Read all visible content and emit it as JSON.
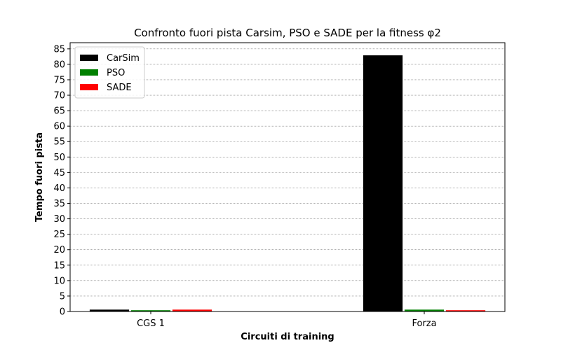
{
  "chart_data": {
    "type": "bar",
    "title": "Confronto fuori pista Carsim, PSO e SADE per la fitness φ2",
    "xlabel": "Circuiti di training",
    "ylabel": "Tempo fuori pista",
    "categories": [
      "CGS 1",
      "Forza"
    ],
    "series": [
      {
        "name": "CarSim",
        "color": "#000000",
        "values": [
          0.7,
          83
        ]
      },
      {
        "name": "PSO",
        "color": "#008000",
        "values": [
          0.5,
          0.7
        ]
      },
      {
        "name": "SADE",
        "color": "#ff0000",
        "values": [
          0.7,
          0.5
        ]
      }
    ],
    "ylim": [
      0,
      87
    ],
    "yticks": [
      0,
      5,
      10,
      15,
      20,
      25,
      30,
      35,
      40,
      45,
      50,
      55,
      60,
      65,
      70,
      75,
      80,
      85
    ],
    "grid": true,
    "legend_position": "top-left"
  }
}
